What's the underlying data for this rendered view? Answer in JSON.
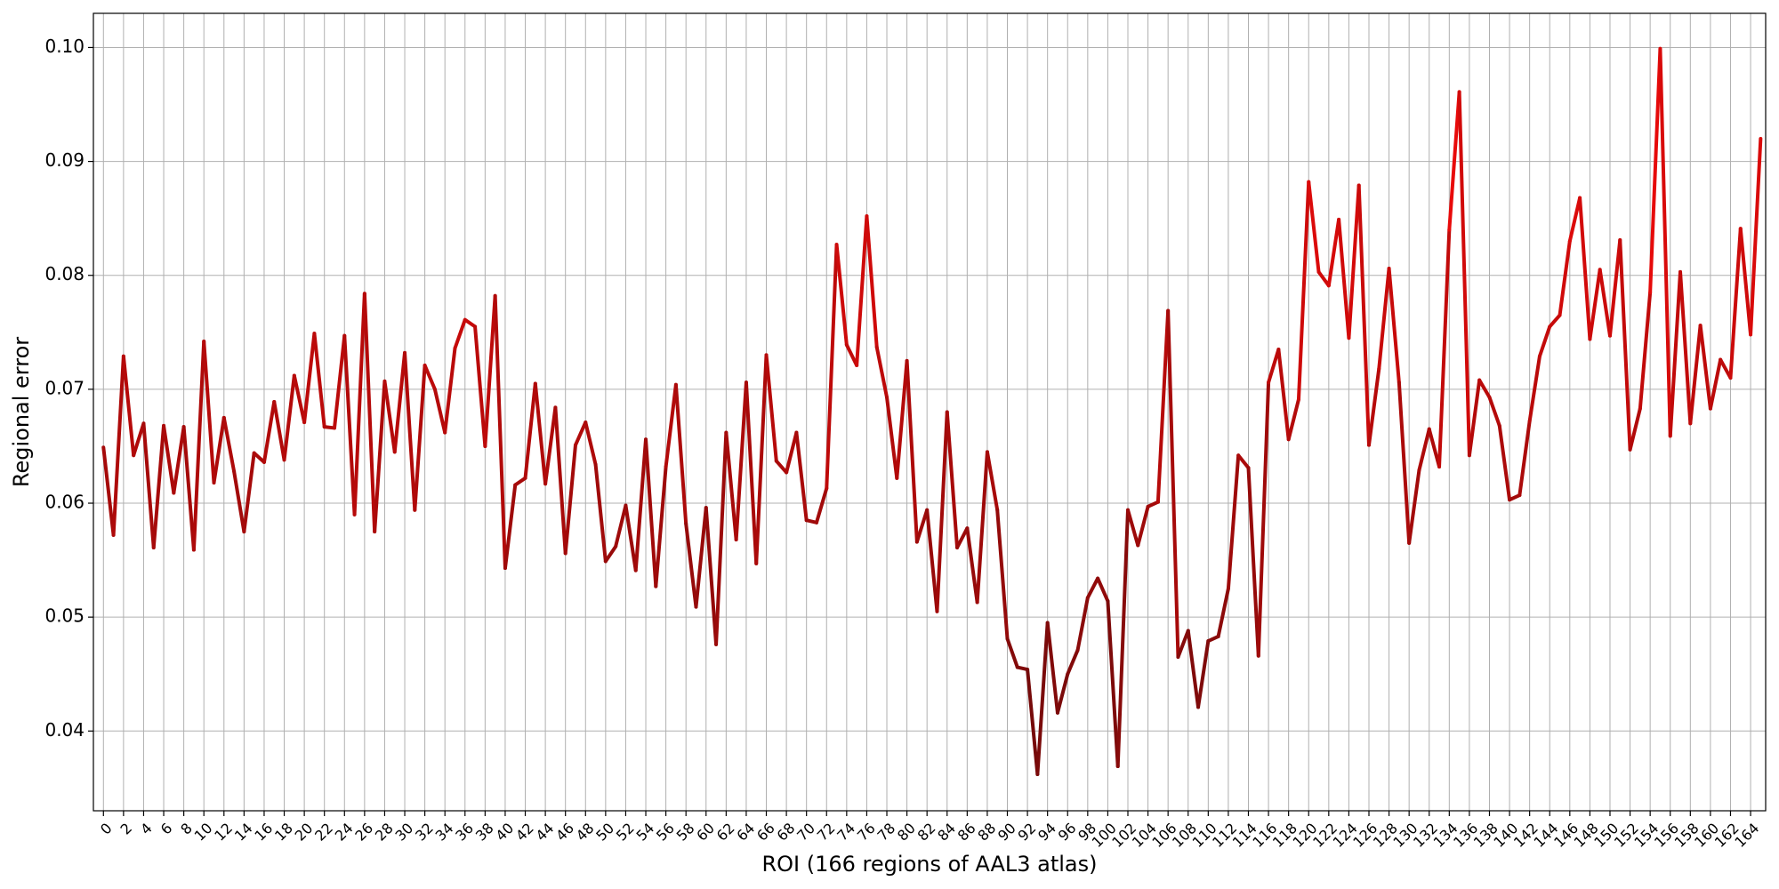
{
  "chart_data": {
    "type": "line",
    "title": "",
    "xlabel": "ROI (166 regions of AAL3 atlas)",
    "ylabel": "Regional error",
    "xlim": [
      -1,
      165.5
    ],
    "ylim": [
      0.033,
      0.103
    ],
    "grid": true,
    "legend": "none",
    "xticks": [
      0,
      2,
      4,
      6,
      8,
      10,
      12,
      14,
      16,
      18,
      20,
      22,
      24,
      26,
      28,
      30,
      32,
      34,
      36,
      38,
      40,
      42,
      44,
      46,
      48,
      50,
      52,
      54,
      56,
      58,
      60,
      62,
      64,
      66,
      68,
      70,
      72,
      74,
      76,
      78,
      80,
      82,
      84,
      86,
      88,
      90,
      92,
      94,
      96,
      98,
      100,
      102,
      104,
      106,
      108,
      110,
      112,
      114,
      116,
      118,
      120,
      122,
      124,
      126,
      128,
      130,
      132,
      134,
      136,
      138,
      140,
      142,
      144,
      146,
      148,
      150,
      152,
      154,
      156,
      158,
      160,
      162,
      164
    ],
    "yticks": [
      "0.04",
      "0.05",
      "0.06",
      "0.07",
      "0.08",
      "0.09",
      "0.10"
    ],
    "color_low": "#6b0a0a",
    "color_high": "#ff0a0a",
    "series": [
      {
        "values": [
          0.0649,
          0.0572,
          0.0729,
          0.0642,
          0.067,
          0.0561,
          0.0668,
          0.0609,
          0.0667,
          0.0559,
          0.0742,
          0.0618,
          0.0675,
          0.0628,
          0.0575,
          0.0644,
          0.0636,
          0.0689,
          0.0638,
          0.0712,
          0.0671,
          0.0749,
          0.0667,
          0.0666,
          0.0747,
          0.059,
          0.0784,
          0.0575,
          0.0707,
          0.0645,
          0.0732,
          0.0594,
          0.0721,
          0.07,
          0.0662,
          0.0736,
          0.0761,
          0.0755,
          0.065,
          0.0782,
          0.0543,
          0.0616,
          0.0622,
          0.0705,
          0.0617,
          0.0684,
          0.0556,
          0.0651,
          0.0671,
          0.0634,
          0.0549,
          0.0562,
          0.0598,
          0.0541,
          0.0656,
          0.0527,
          0.0632,
          0.0704,
          0.0582,
          0.0509,
          0.0596,
          0.0476,
          0.0662,
          0.0568,
          0.0706,
          0.0547,
          0.073,
          0.0637,
          0.0627,
          0.0662,
          0.0585,
          0.0583,
          0.0613,
          0.0827,
          0.0739,
          0.0721,
          0.0852,
          0.0737,
          0.0693,
          0.0622,
          0.0725,
          0.0566,
          0.0594,
          0.0505,
          0.068,
          0.0561,
          0.0578,
          0.0513,
          0.0645,
          0.0594,
          0.0481,
          0.0456,
          0.0454,
          0.0362,
          0.0495,
          0.0416,
          0.045,
          0.0471,
          0.0517,
          0.0534,
          0.0514,
          0.0369,
          0.0594,
          0.0563,
          0.0597,
          0.0601,
          0.0769,
          0.0465,
          0.0488,
          0.0421,
          0.0479,
          0.0483,
          0.0525,
          0.0642,
          0.0631,
          0.0466,
          0.0706,
          0.0735,
          0.0656,
          0.0691,
          0.0882,
          0.0803,
          0.0791,
          0.0849,
          0.0745,
          0.0879,
          0.0651,
          0.0718,
          0.0806,
          0.0706,
          0.0565,
          0.0629,
          0.0665,
          0.0632,
          0.084,
          0.0961,
          0.0642,
          0.0708,
          0.0693,
          0.0668,
          0.0603,
          0.0607,
          0.0672,
          0.0729,
          0.0755,
          0.0765,
          0.083,
          0.0868,
          0.0744,
          0.0805,
          0.0747,
          0.0831,
          0.0647,
          0.0683,
          0.0785,
          0.0999,
          0.0659,
          0.0803,
          0.067,
          0.0756,
          0.0683,
          0.0726,
          0.071,
          0.0841,
          0.0748,
          0.092
        ]
      }
    ]
  }
}
